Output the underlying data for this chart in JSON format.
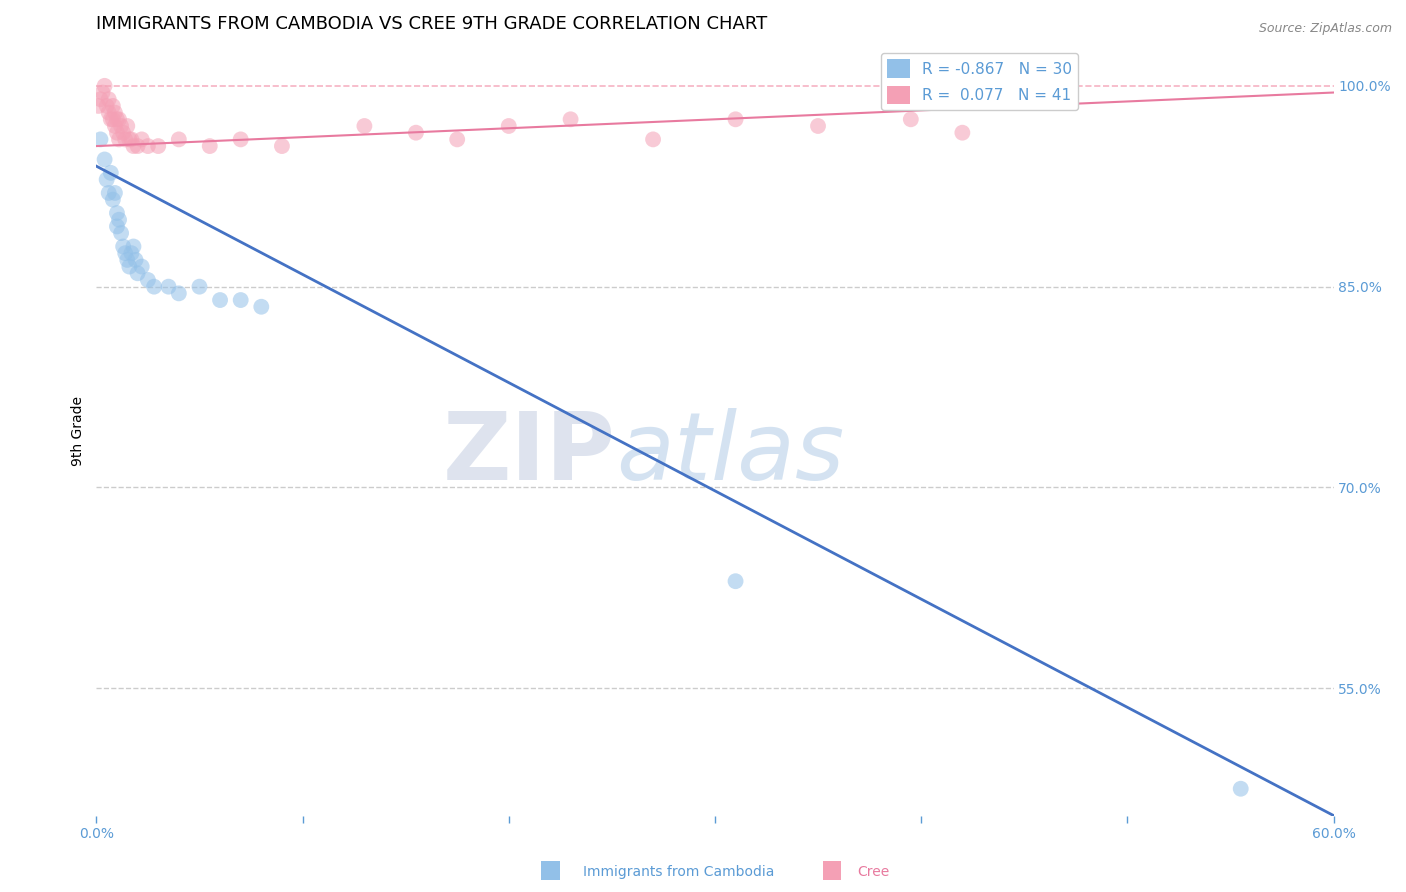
{
  "title": "IMMIGRANTS FROM CAMBODIA VS CREE 9TH GRADE CORRELATION CHART",
  "source": "Source: ZipAtlas.com",
  "ylabel": "9th Grade",
  "xlim": [
    0.0,
    0.6
  ],
  "ylim": [
    0.455,
    1.03
  ],
  "xticks": [
    0.0,
    0.1,
    0.2,
    0.3,
    0.4,
    0.5,
    0.6
  ],
  "xticklabels": [
    "0.0%",
    "",
    "",
    "",
    "",
    "",
    "60.0%"
  ],
  "yticks": [
    0.55,
    0.7,
    0.85,
    1.0
  ],
  "yticklabels": [
    "55.0%",
    "70.0%",
    "85.0%",
    "100.0%"
  ],
  "hlines": [
    0.55,
    0.7,
    0.85,
    1.0
  ],
  "blue_label": "Immigrants from Cambodia",
  "pink_label": "Cree",
  "blue_R": -0.867,
  "blue_N": 30,
  "pink_R": 0.077,
  "pink_N": 41,
  "blue_color": "#92c0e8",
  "pink_color": "#f4a0b5",
  "blue_line_color": "#4472c4",
  "pink_line_color": "#e87a9f",
  "blue_scatter_x": [
    0.002,
    0.004,
    0.005,
    0.006,
    0.007,
    0.008,
    0.009,
    0.01,
    0.01,
    0.011,
    0.012,
    0.013,
    0.014,
    0.015,
    0.016,
    0.017,
    0.018,
    0.019,
    0.02,
    0.022,
    0.025,
    0.028,
    0.035,
    0.04,
    0.05,
    0.06,
    0.07,
    0.08,
    0.31,
    0.555
  ],
  "blue_scatter_y": [
    0.96,
    0.945,
    0.93,
    0.92,
    0.935,
    0.915,
    0.92,
    0.905,
    0.895,
    0.9,
    0.89,
    0.88,
    0.875,
    0.87,
    0.865,
    0.875,
    0.88,
    0.87,
    0.86,
    0.865,
    0.855,
    0.85,
    0.85,
    0.845,
    0.85,
    0.84,
    0.84,
    0.835,
    0.63,
    0.475
  ],
  "pink_scatter_x": [
    0.001,
    0.002,
    0.003,
    0.004,
    0.005,
    0.006,
    0.006,
    0.007,
    0.008,
    0.008,
    0.009,
    0.009,
    0.01,
    0.01,
    0.011,
    0.011,
    0.012,
    0.013,
    0.014,
    0.015,
    0.016,
    0.017,
    0.018,
    0.02,
    0.022,
    0.025,
    0.03,
    0.04,
    0.055,
    0.07,
    0.09,
    0.13,
    0.155,
    0.175,
    0.2,
    0.23,
    0.27,
    0.31,
    0.35,
    0.395,
    0.42
  ],
  "pink_scatter_y": [
    0.985,
    0.99,
    0.995,
    1.0,
    0.985,
    0.98,
    0.99,
    0.975,
    0.985,
    0.975,
    0.98,
    0.97,
    0.975,
    0.965,
    0.975,
    0.96,
    0.97,
    0.965,
    0.96,
    0.97,
    0.96,
    0.96,
    0.955,
    0.955,
    0.96,
    0.955,
    0.955,
    0.96,
    0.955,
    0.96,
    0.955,
    0.97,
    0.965,
    0.96,
    0.97,
    0.975,
    0.96,
    0.975,
    0.97,
    0.975,
    0.965
  ],
  "blue_trendline_x": [
    0.0,
    0.6
  ],
  "blue_trendline_y": [
    0.94,
    0.455
  ],
  "pink_trendline_x": [
    0.0,
    0.6
  ],
  "pink_trendline_y": [
    0.955,
    0.995
  ],
  "watermark_zip": "ZIP",
  "watermark_atlas": "atlas",
  "background_color": "#ffffff",
  "grid_color": "#cccccc",
  "tick_color": "#5b9bd5",
  "title_fontsize": 13,
  "legend_fontsize": 11,
  "axis_label_fontsize": 10,
  "scatter_size": 130
}
